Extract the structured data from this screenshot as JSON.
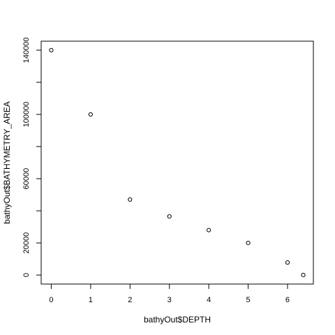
{
  "chart_data": {
    "type": "scatter",
    "title": "",
    "xlabel": "bathyOut$DEPTH",
    "ylabel": "bathyOut$BATHYMETRY_AREA",
    "xlim": [
      -0.256,
      6.656
    ],
    "ylim": [
      -5600,
      145600
    ],
    "x_ticks": [
      0,
      1,
      2,
      3,
      4,
      5,
      6
    ],
    "y_ticks": [
      0,
      20000,
      60000,
      100000,
      140000
    ],
    "y_minor_ticks": [
      40000,
      80000,
      120000
    ],
    "grid": false,
    "legend": "none",
    "marker": "open-circle",
    "points": [
      {
        "x": 0,
        "y": 140000
      },
      {
        "x": 1,
        "y": 100000
      },
      {
        "x": 2,
        "y": 47000
      },
      {
        "x": 3,
        "y": 36500
      },
      {
        "x": 4,
        "y": 28000
      },
      {
        "x": 5,
        "y": 20000
      },
      {
        "x": 6,
        "y": 7800
      },
      {
        "x": 6.4,
        "y": 0
      }
    ]
  }
}
